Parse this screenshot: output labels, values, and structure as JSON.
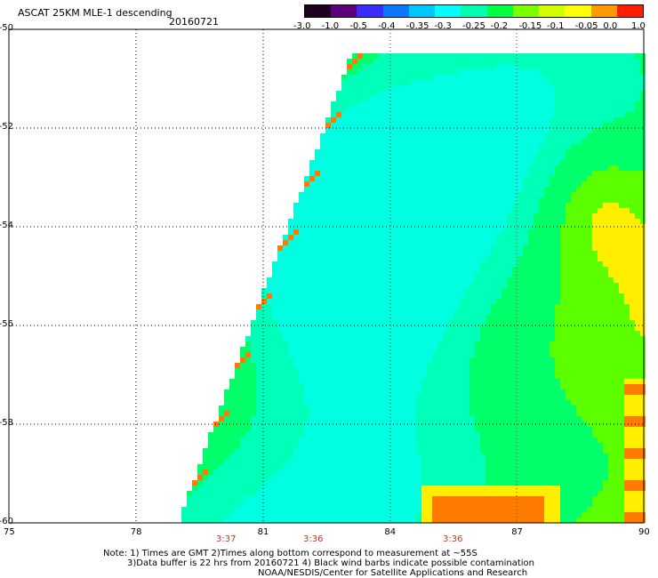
{
  "header": {
    "title": "ASCAT 25KM MLE-1 descending",
    "date": "20160721"
  },
  "colorbar": {
    "labels": [
      "-3.0",
      "-1.0",
      "-0.5",
      "-0.4",
      "-0.35",
      "-0.3",
      "-0.25",
      "-0.2",
      "-0.15",
      "-0.1",
      "-0.05",
      "0.0",
      "1.0"
    ],
    "colors": [
      "#200020",
      "#5a0078",
      "#3a2cff",
      "#0a78ff",
      "#00c6ff",
      "#00ffff",
      "#00ffb0",
      "#00ff40",
      "#7cff00",
      "#d2ff00",
      "#ffff00",
      "#ff9a00",
      "#ff1e00"
    ]
  },
  "map": {
    "lat_labels": [
      "-50",
      "-52",
      "-54",
      "-56",
      "-58",
      "-60"
    ],
    "lon_labels": [
      "75",
      "78",
      "81",
      "84",
      "87",
      "90"
    ],
    "time_labels": [
      "3:37",
      "3:36",
      "3:36"
    ],
    "field_colors": {
      "cyan": "#00ffe0",
      "aqua": "#00ffb8",
      "green": "#00ff6a",
      "lime": "#5cff00",
      "yellow": "#ffee00",
      "orange": "#ff7a00"
    }
  },
  "notes": {
    "line1": "Note: 1) Times are GMT 2)Times along bottom correspond to measurement at ~55S",
    "line2": "3)Data buffer is 22 hrs from 20160721 4) Black wind barbs indicate possible contamination",
    "line3": "NOAA/NESDIS/Center for Satellite Applications and Research"
  }
}
